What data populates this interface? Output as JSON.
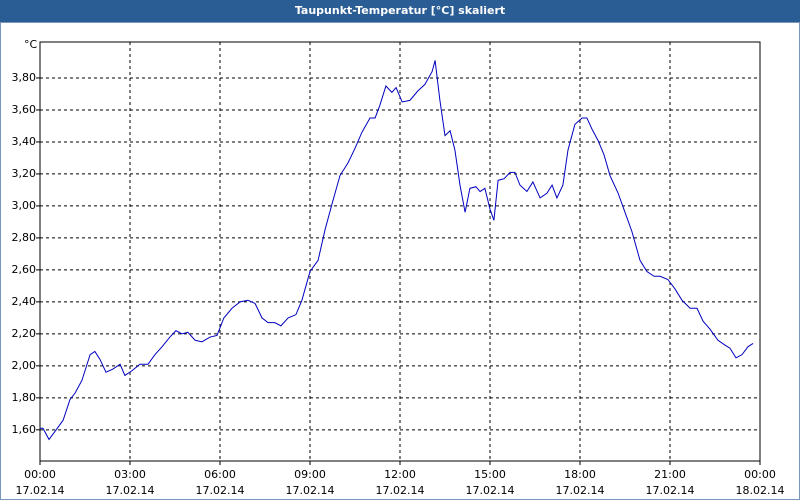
{
  "chart_data": {
    "type": "line",
    "title": "Taupunkt-Temperatur [°C] skaliert",
    "y_label": "°C",
    "x": [
      0,
      0.1,
      0.3,
      0.5,
      0.77,
      1.0,
      1.17,
      1.4,
      1.67,
      1.83,
      2.0,
      2.2,
      2.43,
      2.67,
      2.83,
      3.07,
      3.33,
      3.6,
      3.83,
      4.07,
      4.33,
      4.53,
      4.73,
      4.93,
      5.17,
      5.4,
      5.67,
      5.9,
      6.13,
      6.4,
      6.67,
      6.93,
      7.17,
      7.4,
      7.6,
      7.83,
      8.03,
      8.27,
      8.53,
      8.73,
      9.0,
      9.27,
      9.5,
      9.73,
      10.0,
      10.27,
      10.5,
      10.73,
      11.0,
      11.17,
      11.33,
      11.53,
      11.73,
      11.87,
      12.07,
      12.33,
      12.6,
      12.83,
      13.07,
      13.17,
      13.33,
      13.5,
      13.67,
      13.83,
      14.0,
      14.17,
      14.33,
      14.53,
      14.67,
      14.83,
      15.0,
      15.13,
      15.27,
      15.47,
      15.67,
      15.83,
      16.0,
      16.23,
      16.43,
      16.67,
      16.9,
      17.07,
      17.23,
      17.43,
      17.6,
      17.83,
      18.07,
      18.23,
      18.4,
      18.6,
      18.8,
      19.0,
      19.27,
      19.5,
      19.73,
      20.0,
      20.23,
      20.47,
      20.67,
      20.93,
      21.17,
      21.4,
      21.67,
      21.9,
      22.1,
      22.33,
      22.6,
      22.83,
      23.0,
      23.2,
      23.4,
      23.6,
      23.77
    ],
    "series": [
      {
        "name": "Taupunkt",
        "color": "#0000c0",
        "values": [
          1.61,
          1.61,
          1.54,
          1.59,
          1.66,
          1.79,
          1.83,
          1.91,
          2.07,
          2.09,
          2.04,
          1.96,
          1.98,
          2.01,
          1.94,
          1.97,
          2.01,
          2.01,
          2.07,
          2.12,
          2.18,
          2.22,
          2.2,
          2.21,
          2.16,
          2.15,
          2.18,
          2.19,
          2.3,
          2.36,
          2.4,
          2.41,
          2.39,
          2.3,
          2.27,
          2.27,
          2.25,
          2.3,
          2.32,
          2.41,
          2.59,
          2.66,
          2.85,
          3.01,
          3.19,
          3.27,
          3.36,
          3.46,
          3.55,
          3.55,
          3.63,
          3.75,
          3.71,
          3.74,
          3.65,
          3.66,
          3.72,
          3.76,
          3.84,
          3.91,
          3.66,
          3.44,
          3.47,
          3.35,
          3.13,
          2.96,
          3.11,
          3.12,
          3.09,
          3.11,
          2.98,
          2.91,
          3.16,
          3.17,
          3.21,
          3.21,
          3.13,
          3.09,
          3.15,
          3.05,
          3.08,
          3.13,
          3.05,
          3.13,
          3.35,
          3.51,
          3.55,
          3.55,
          3.48,
          3.41,
          3.32,
          3.19,
          3.08,
          2.96,
          2.84,
          2.66,
          2.59,
          2.56,
          2.56,
          2.54,
          2.48,
          2.41,
          2.36,
          2.36,
          2.28,
          2.23,
          2.16,
          2.13,
          2.11,
          2.05,
          2.07,
          2.12,
          2.14
        ]
      }
    ],
    "xlim": [
      0,
      24
    ],
    "xticks": [
      {
        "value": 0,
        "label": "00:00"
      },
      {
        "value": 3,
        "label": "03:00"
      },
      {
        "value": 6,
        "label": "06:00"
      },
      {
        "value": 9,
        "label": "09:00"
      },
      {
        "value": 12,
        "label": "12:00"
      },
      {
        "value": 15,
        "label": "15:00"
      },
      {
        "value": 18,
        "label": "18:00"
      },
      {
        "value": 21,
        "label": "21:00"
      },
      {
        "value": 24,
        "label": "00:00"
      }
    ],
    "xtick_dates": [
      "17.02.14",
      "17.02.14",
      "17.02.14",
      "17.02.14",
      "17.02.14",
      "17.02.14",
      "17.02.14",
      "17.02.14",
      "18.02.14"
    ],
    "ylim": [
      1.405,
      4.025
    ],
    "yticks": [
      {
        "value": 1.6,
        "label": "1,60"
      },
      {
        "value": 1.8,
        "label": "1,80"
      },
      {
        "value": 2.0,
        "label": "2,00"
      },
      {
        "value": 2.2,
        "label": "2,20"
      },
      {
        "value": 2.4,
        "label": "2,40"
      },
      {
        "value": 2.6,
        "label": "2,60"
      },
      {
        "value": 2.8,
        "label": "2,80"
      },
      {
        "value": 3.0,
        "label": "3,00"
      },
      {
        "value": 3.2,
        "label": "3,20"
      },
      {
        "value": 3.4,
        "label": "3,40"
      },
      {
        "value": 3.6,
        "label": "3,60"
      },
      {
        "value": 3.8,
        "label": "3,80"
      }
    ],
    "grid": true
  }
}
